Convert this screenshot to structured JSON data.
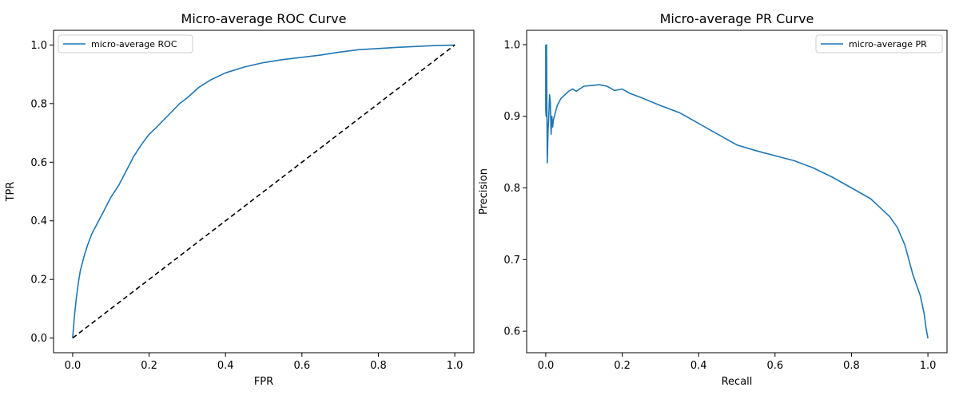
{
  "chart_data": [
    {
      "type": "line",
      "title": "Micro-average ROC Curve",
      "xlabel": "FPR",
      "ylabel": "TPR",
      "xlim": [
        -0.05,
        1.05
      ],
      "ylim": [
        -0.05,
        1.05
      ],
      "xticks": [
        "0.0",
        "0.2",
        "0.4",
        "0.6",
        "0.8",
        "1.0"
      ],
      "yticks": [
        "0.0",
        "0.2",
        "0.4",
        "0.6",
        "0.8",
        "1.0"
      ],
      "legend_position": "upper-left",
      "grid": false,
      "series": [
        {
          "name": "micro-average ROC",
          "color": "#1f77b4",
          "style": "solid",
          "x": [
            0.0,
            0.005,
            0.01,
            0.015,
            0.02,
            0.03,
            0.04,
            0.05,
            0.06,
            0.08,
            0.1,
            0.12,
            0.14,
            0.16,
            0.18,
            0.2,
            0.22,
            0.25,
            0.28,
            0.3,
            0.33,
            0.36,
            0.4,
            0.45,
            0.5,
            0.55,
            0.6,
            0.65,
            0.7,
            0.75,
            0.8,
            0.85,
            0.9,
            0.95,
            1.0
          ],
          "y": [
            0.0,
            0.08,
            0.14,
            0.19,
            0.23,
            0.28,
            0.32,
            0.355,
            0.38,
            0.43,
            0.48,
            0.52,
            0.57,
            0.62,
            0.66,
            0.695,
            0.72,
            0.76,
            0.8,
            0.82,
            0.855,
            0.88,
            0.905,
            0.925,
            0.94,
            0.95,
            0.958,
            0.966,
            0.976,
            0.984,
            0.988,
            0.992,
            0.995,
            0.998,
            1.0
          ]
        },
        {
          "name": "",
          "color": "#000000",
          "style": "dashed",
          "x": [
            0.0,
            1.0
          ],
          "y": [
            0.0,
            1.0
          ]
        }
      ]
    },
    {
      "type": "line",
      "title": "Micro-average PR Curve",
      "xlabel": "Recall",
      "ylabel": "Precision",
      "xlim": [
        -0.05,
        1.05
      ],
      "ylim": [
        0.57,
        1.02
      ],
      "xticks": [
        "0.0",
        "0.2",
        "0.4",
        "0.6",
        "0.8",
        "1.0"
      ],
      "yticks": [
        "0.6",
        "0.7",
        "0.8",
        "0.9",
        "1.0"
      ],
      "legend_position": "upper-right",
      "grid": false,
      "series": [
        {
          "name": "micro-average PR",
          "color": "#1f77b4",
          "style": "solid",
          "x": [
            0.0,
            0.0,
            0.001,
            0.002,
            0.003,
            0.004,
            0.006,
            0.008,
            0.01,
            0.012,
            0.014,
            0.016,
            0.018,
            0.02,
            0.025,
            0.03,
            0.035,
            0.04,
            0.05,
            0.06,
            0.07,
            0.08,
            0.1,
            0.12,
            0.14,
            0.16,
            0.18,
            0.2,
            0.22,
            0.25,
            0.3,
            0.35,
            0.4,
            0.45,
            0.5,
            0.55,
            0.6,
            0.65,
            0.7,
            0.75,
            0.8,
            0.85,
            0.9,
            0.92,
            0.94,
            0.96,
            0.97,
            0.98,
            0.99,
            0.995,
            1.0
          ],
          "y": [
            1.0,
            0.91,
            0.9,
            1.0,
            0.92,
            0.835,
            0.88,
            0.9,
            0.93,
            0.92,
            0.875,
            0.9,
            0.885,
            0.895,
            0.905,
            0.915,
            0.92,
            0.925,
            0.93,
            0.935,
            0.938,
            0.935,
            0.942,
            0.943,
            0.944,
            0.942,
            0.936,
            0.938,
            0.932,
            0.926,
            0.915,
            0.905,
            0.89,
            0.875,
            0.86,
            0.852,
            0.845,
            0.838,
            0.828,
            0.815,
            0.8,
            0.785,
            0.76,
            0.745,
            0.72,
            0.68,
            0.665,
            0.65,
            0.625,
            0.605,
            0.59
          ]
        }
      ]
    }
  ]
}
